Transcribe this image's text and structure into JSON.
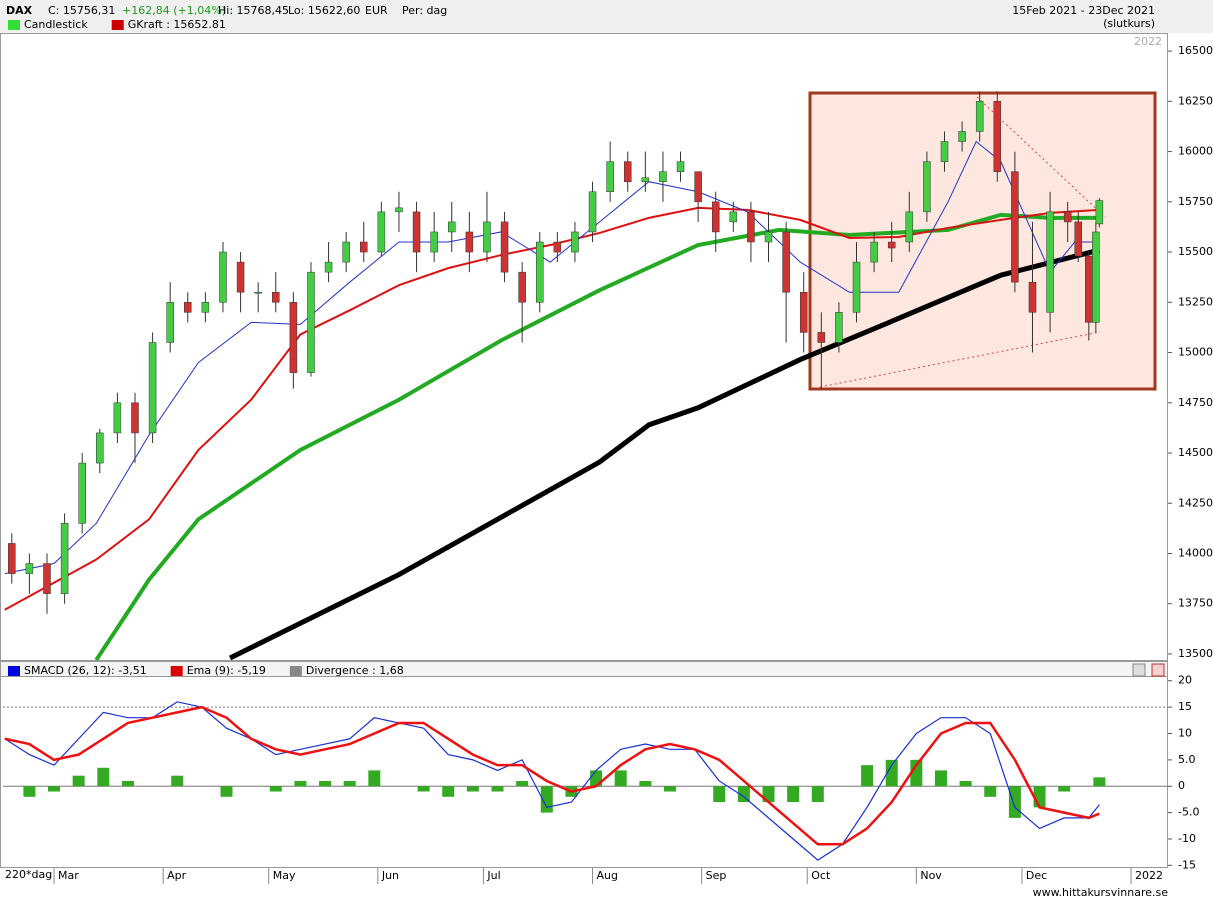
{
  "header": {
    "symbol": "DAX",
    "close": "C: 15756,31",
    "change": "+162,84 (+1,04%)",
    "high": "Hi: 15768,45",
    "low": "Lo: 15622,60",
    "currency": "EUR",
    "period": "Per: dag",
    "range": "15Feb 2021 - 23Dec 2021",
    "mode": "(slutkurs)",
    "year": "2022",
    "footer": "www.hittakursvinnare.se",
    "window": "220*dag"
  },
  "chart_data": [
    {
      "type": "candlestick",
      "legend": [
        {
          "name": "Candlestick",
          "color": "#33dd33"
        },
        {
          "name": "GKraft : 15652.81",
          "color": "#cc0000"
        }
      ],
      "up_color": "#44cc44",
      "down_color": "#cc3333",
      "x": [
        2,
        7,
        12,
        17,
        22,
        27,
        32,
        37,
        42,
        47,
        52,
        57,
        62,
        67,
        72,
        77,
        82,
        87,
        92,
        97,
        102,
        107,
        112,
        117,
        122,
        127,
        132,
        137,
        142,
        147,
        152,
        157,
        162,
        167,
        172,
        177,
        182,
        187,
        192,
        197,
        202,
        207,
        212,
        217,
        222,
        227,
        232,
        237,
        242,
        247,
        252,
        257,
        262,
        267,
        272,
        277,
        282,
        287,
        292,
        297,
        302,
        305,
        308,
        310,
        311
      ],
      "open": [
        14050,
        13900,
        13950,
        13800,
        14150,
        14450,
        14600,
        14750,
        14600,
        15050,
        15250,
        15200,
        15250,
        15450,
        15300,
        15300,
        15250,
        14900,
        15400,
        15450,
        15550,
        15500,
        15700,
        15700,
        15500,
        15600,
        15600,
        15500,
        15650,
        15400,
        15250,
        15550,
        15500,
        15600,
        15800,
        15950,
        15850,
        15850,
        15900,
        15900,
        15750,
        15650,
        15700,
        15550,
        15600,
        15300,
        15100,
        15050,
        15200,
        15450,
        15550,
        15550,
        15700,
        15950,
        16050,
        16100,
        16250,
        15900,
        15350,
        15200,
        15700,
        15650,
        15480,
        15150,
        15640
      ],
      "high": [
        14100,
        14000,
        14000,
        14200,
        14500,
        14620,
        14800,
        14800,
        15100,
        15350,
        15300,
        15300,
        15550,
        15500,
        15350,
        15400,
        15300,
        15450,
        15550,
        15600,
        15650,
        15750,
        15800,
        15750,
        15700,
        15750,
        15700,
        15800,
        15700,
        15450,
        15600,
        15600,
        15650,
        15850,
        16050,
        16000,
        16000,
        16000,
        16000,
        15900,
        15800,
        15750,
        15750,
        15700,
        15650,
        15400,
        15200,
        15250,
        15550,
        15600,
        15650,
        15800,
        16000,
        16100,
        16150,
        16300,
        16300,
        16000,
        15650,
        15800,
        15750,
        15700,
        15500,
        15650,
        15768.45
      ],
      "low": [
        13850,
        13800,
        13700,
        13750,
        14100,
        14400,
        14550,
        14450,
        14550,
        15000,
        15150,
        15150,
        15200,
        15200,
        15200,
        15200,
        14820,
        14880,
        15350,
        15400,
        15450,
        15480,
        15600,
        15400,
        15450,
        15500,
        15400,
        15450,
        15350,
        15050,
        15200,
        15450,
        15450,
        15550,
        15750,
        15800,
        15800,
        15750,
        15850,
        15650,
        15500,
        15600,
        15450,
        15450,
        15050,
        15000,
        14820,
        15000,
        15150,
        15400,
        15450,
        15500,
        15650,
        15900,
        16000,
        16050,
        15850,
        15300,
        15000,
        15100,
        15550,
        15450,
        15060,
        15100,
        15622.6
      ],
      "close": [
        13900,
        13950,
        13800,
        14150,
        14450,
        14600,
        14750,
        14600,
        15050,
        15250,
        15200,
        15250,
        15500,
        15300,
        15300,
        15250,
        14900,
        15400,
        15450,
        15550,
        15500,
        15700,
        15720,
        15500,
        15600,
        15650,
        15500,
        15650,
        15400,
        15250,
        15550,
        15500,
        15600,
        15800,
        15950,
        15850,
        15870,
        15900,
        15950,
        15750,
        15600,
        15700,
        15550,
        15600,
        15300,
        15100,
        15050,
        15200,
        15450,
        15550,
        15520,
        15700,
        15950,
        16050,
        16100,
        16250,
        15900,
        15350,
        15200,
        15700,
        15650,
        15480,
        15150,
        15600,
        15756.31
      ],
      "lines": [
        {
          "color": "#000000",
          "width": 5,
          "x": [
            64,
            112,
            169,
            183,
            197,
            226,
            254,
            283,
            311
          ],
          "values": [
            13480,
            13895,
            14455,
            14640,
            14725,
            14965,
            15170,
            15385,
            15510
          ]
        },
        {
          "color": "#22aa22",
          "width": 4,
          "x": [
            26,
            41,
            55,
            84,
            112,
            141,
            169,
            197,
            220,
            240,
            268,
            283,
            297,
            311
          ],
          "values": [
            13470,
            13870,
            14170,
            14515,
            14765,
            15060,
            15310,
            15535,
            15610,
            15585,
            15610,
            15685,
            15670,
            15670
          ]
        },
        {
          "color": "#dd1111",
          "width": 2,
          "x": [
            0,
            26,
            41,
            55,
            70,
            84,
            98,
            112,
            126,
            141,
            155,
            169,
            183,
            197,
            211,
            226,
            240,
            254,
            268,
            283,
            297,
            311
          ],
          "values": [
            13720,
            13970,
            14170,
            14515,
            14765,
            15090,
            15210,
            15335,
            15420,
            15485,
            15535,
            15595,
            15670,
            15720,
            15710,
            15660,
            15570,
            15575,
            15620,
            15660,
            15695,
            15710
          ]
        },
        {
          "color": "#2233cc",
          "width": 1,
          "x": [
            0,
            14,
            26,
            41,
            55,
            70,
            84,
            98,
            112,
            126,
            141,
            155,
            169,
            183,
            197,
            211,
            226,
            240,
            254,
            268,
            276,
            283,
            297,
            304,
            311
          ],
          "values": [
            13900,
            13950,
            14150,
            14590,
            14950,
            15150,
            15140,
            15350,
            15550,
            15550,
            15600,
            15450,
            15650,
            15850,
            15800,
            15700,
            15450,
            15300,
            15300,
            15750,
            16050,
            15950,
            15400,
            15550,
            15550
          ]
        }
      ],
      "xlim": [
        -0.5,
        330.5
      ],
      "ylim": [
        13470,
        16590
      ],
      "yticks": [
        13500,
        13750,
        14000,
        14250,
        14500,
        14750,
        15000,
        15250,
        15500,
        15750,
        16000,
        16250,
        16500
      ]
    },
    {
      "type": "macd",
      "legend": [
        {
          "name": "SMACD (26, 12): -3,51",
          "color": "#0000dd"
        },
        {
          "name": "Ema (9): -5,19",
          "color": "#dd0000"
        },
        {
          "name": "Divergence : 1,68",
          "color": "#888888"
        }
      ],
      "x": [
        0,
        7,
        14,
        21,
        28,
        35,
        42,
        49,
        56,
        63,
        70,
        77,
        84,
        91,
        98,
        105,
        112,
        119,
        126,
        133,
        140,
        147,
        154,
        161,
        168,
        175,
        182,
        189,
        196,
        203,
        210,
        217,
        224,
        231,
        238,
        245,
        252,
        259,
        266,
        273,
        280,
        287,
        294,
        301,
        308,
        311
      ],
      "series": [
        {
          "color": "#1a2fd6",
          "values": [
            9,
            6,
            4,
            9,
            14,
            13,
            13,
            16,
            15,
            11,
            9,
            6,
            7,
            8,
            9,
            13,
            12,
            11,
            6,
            5,
            3,
            5,
            -4,
            -3,
            3,
            7,
            8,
            7,
            7,
            1,
            -2,
            -6,
            -10,
            -14,
            -11,
            -4,
            4,
            10,
            13,
            13,
            10,
            -4,
            -8,
            -6,
            -6,
            -3.51
          ]
        },
        {
          "color": "#ee1111",
          "values": [
            9,
            8,
            5,
            6,
            9,
            12,
            13,
            14,
            15,
            13,
            9,
            7,
            6,
            7,
            8,
            10,
            12,
            12,
            9,
            6,
            4,
            4,
            1,
            -1,
            0,
            4,
            7,
            8,
            7,
            5,
            1,
            -3,
            -7,
            -11,
            -11,
            -8,
            -3,
            4,
            10,
            12,
            12,
            5,
            -4,
            -5,
            -6,
            -5.19
          ]
        }
      ],
      "divergence": {
        "color": "#33aa22",
        "values": [
          0,
          -2,
          -1,
          2,
          3.5,
          1,
          0,
          2,
          0,
          -2,
          0,
          -1,
          1,
          1,
          1,
          3,
          0,
          -1,
          -2,
          -1,
          -1,
          1,
          -5,
          -2,
          3,
          3,
          1,
          -1,
          0,
          -3,
          -3,
          -3,
          -3,
          -3,
          0,
          4,
          5,
          5,
          3,
          1,
          -2,
          -6,
          -4,
          -1,
          0,
          1.68
        ]
      },
      "reference_lines": [
        15,
        0
      ],
      "xlim": [
        -0.5,
        330.5
      ],
      "ylim": [
        -15.5,
        20.9
      ],
      "yticks": [
        20,
        15,
        10,
        {
          "value": 5,
          "label": "5.0"
        },
        0,
        {
          "value": -5,
          "label": "-5.0"
        },
        -10,
        -15
      ],
      "xticks": [
        {
          "value": 14,
          "label": "Mar"
        },
        {
          "value": 45,
          "label": "Apr"
        },
        {
          "value": 75,
          "label": "May"
        },
        {
          "value": 106,
          "label": "Jun"
        },
        {
          "value": 136,
          "label": "Jul"
        },
        {
          "value": 167,
          "label": "Aug"
        },
        {
          "value": 198,
          "label": "Sep"
        },
        {
          "value": 228,
          "label": "Oct"
        },
        {
          "value": 259,
          "label": "Nov"
        },
        {
          "value": 289,
          "label": "Dec"
        },
        {
          "value": 320,
          "label": "2022"
        }
      ]
    }
  ]
}
